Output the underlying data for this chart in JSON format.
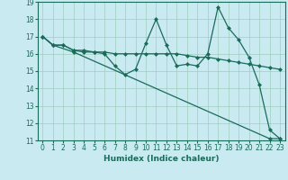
{
  "line1": {
    "x": [
      0,
      1,
      2,
      3,
      4,
      5,
      6,
      7,
      8,
      9,
      10,
      11,
      12,
      13,
      14,
      15,
      16,
      17,
      18,
      19,
      20,
      21,
      22,
      23
    ],
    "y": [
      17.0,
      16.5,
      16.5,
      16.2,
      16.2,
      16.1,
      16.1,
      16.0,
      16.0,
      16.0,
      16.0,
      16.0,
      16.0,
      16.0,
      15.9,
      15.8,
      15.8,
      15.7,
      15.6,
      15.5,
      15.4,
      15.3,
      15.2,
      15.1
    ]
  },
  "line2": {
    "x": [
      0,
      1,
      2,
      3,
      4,
      5,
      6,
      7,
      8,
      9,
      10,
      11,
      12,
      13,
      14,
      15,
      16,
      17,
      18,
      19,
      20,
      21,
      22,
      23
    ],
    "y": [
      17.0,
      16.5,
      16.5,
      16.2,
      16.1,
      16.1,
      16.0,
      15.3,
      14.8,
      15.1,
      16.6,
      18.0,
      16.5,
      15.3,
      15.4,
      15.3,
      16.0,
      18.7,
      17.5,
      16.8,
      15.8,
      14.2,
      11.6,
      11.1
    ]
  },
  "line3": {
    "x": [
      0,
      1,
      3,
      22,
      23
    ],
    "y": [
      17.0,
      16.5,
      16.1,
      11.1,
      11.1
    ]
  },
  "xlim": [
    -0.5,
    23.5
  ],
  "ylim": [
    11,
    19
  ],
  "yticks": [
    11,
    12,
    13,
    14,
    15,
    16,
    17,
    18,
    19
  ],
  "xticks": [
    0,
    1,
    2,
    3,
    4,
    5,
    6,
    7,
    8,
    9,
    10,
    11,
    12,
    13,
    14,
    15,
    16,
    17,
    18,
    19,
    20,
    21,
    22,
    23
  ],
  "xlabel": "Humidex (Indice chaleur)",
  "background_color": "#c8eaf0",
  "grid_color": "#a0ccbb",
  "line_color": "#1a6b5a",
  "xlabel_fontsize": 6.5,
  "tick_fontsize": 5.5
}
